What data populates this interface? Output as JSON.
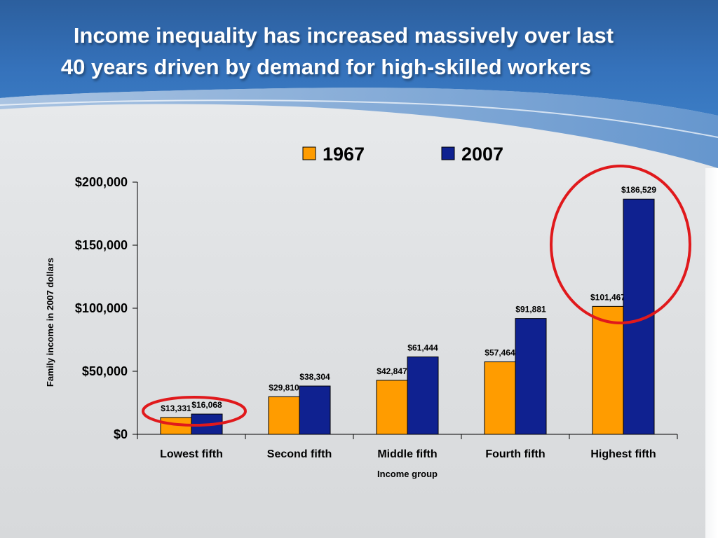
{
  "slide": {
    "title_line1": "Income inequality has increased massively over last",
    "title_line2": "40 years driven by demand for high-skilled workers"
  },
  "colors": {
    "series_1967": "#ff9c00",
    "series_2007": "#0f2190",
    "header_blue": "#2f6bb5",
    "highlight_circle": "#e0191c"
  },
  "chart_data": {
    "type": "bar",
    "categories": [
      "Lowest fifth",
      "Second fifth",
      "Middle fifth",
      "Fourth fifth",
      "Highest fifth"
    ],
    "series": [
      {
        "name": "1967",
        "values": [
          13331,
          29810,
          42847,
          57464,
          101467
        ],
        "labels": [
          "$13,331",
          "$29,810",
          "$42,847",
          "$57,464",
          "$101,467"
        ]
      },
      {
        "name": "2007",
        "values": [
          16068,
          38304,
          61444,
          91881,
          186529
        ],
        "labels": [
          "$16,068",
          "$38,304",
          "$61,444",
          "$91,881",
          "$186,529"
        ]
      }
    ],
    "xlabel": "Income group",
    "ylabel": "Family income in 2007 dollars",
    "ylim": [
      0,
      200000
    ],
    "yticks": [
      0,
      50000,
      100000,
      150000,
      200000
    ],
    "ytick_labels": [
      "$0",
      "$50,000",
      "$100,000",
      "$150,000",
      "$200,000"
    ],
    "legend_position": "top",
    "grid": false,
    "highlighted_categories": [
      "Lowest fifth",
      "Highest fifth"
    ]
  }
}
